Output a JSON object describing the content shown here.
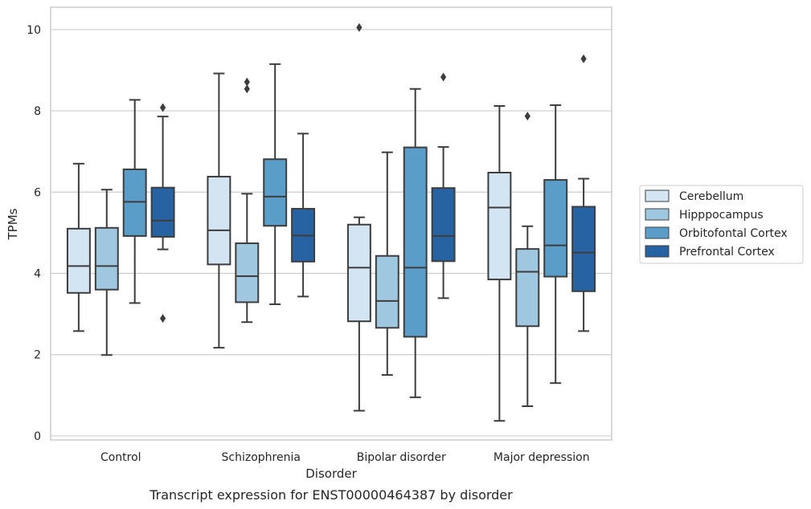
{
  "caption": "Transcript expression for ENST00000464387 by disorder",
  "chart_data": {
    "type": "boxplot",
    "title": "",
    "xlabel": "Disorder",
    "ylabel": "TPMs",
    "ylim": [
      -0.1,
      10.55
    ],
    "yticks": [
      0,
      2,
      4,
      6,
      8,
      10
    ],
    "grid": "horizontal",
    "legend_position": "right",
    "categories": [
      "Control",
      "Schizophrenia",
      "Bipolar disorder",
      "Major depression"
    ],
    "series": [
      {
        "name": "Cerebellum",
        "color": "#d3e4f3",
        "boxes": [
          {
            "whislo": 2.58,
            "q1": 3.52,
            "med": 4.18,
            "q3": 5.1,
            "whishi": 6.7,
            "fliers": []
          },
          {
            "whislo": 2.17,
            "q1": 4.22,
            "med": 5.06,
            "q3": 6.38,
            "whishi": 8.92,
            "fliers": []
          },
          {
            "whislo": 0.62,
            "q1": 2.82,
            "med": 4.14,
            "q3": 5.2,
            "whishi": 5.38,
            "fliers": [
              10.05
            ]
          },
          {
            "whislo": 0.37,
            "q1": 3.85,
            "med": 5.62,
            "q3": 6.48,
            "whishi": 8.12,
            "fliers": []
          }
        ]
      },
      {
        "name": "Hipppocampus",
        "color": "#9fc8e0",
        "boxes": [
          {
            "whislo": 1.99,
            "q1": 3.6,
            "med": 4.18,
            "q3": 5.12,
            "whishi": 6.06,
            "fliers": []
          },
          {
            "whislo": 2.8,
            "q1": 3.29,
            "med": 3.93,
            "q3": 4.74,
            "whishi": 5.96,
            "fliers": [
              8.71,
              8.54
            ]
          },
          {
            "whislo": 1.5,
            "q1": 2.66,
            "med": 3.32,
            "q3": 4.43,
            "whishi": 6.98,
            "fliers": []
          },
          {
            "whislo": 0.73,
            "q1": 2.7,
            "med": 4.04,
            "q3": 4.6,
            "whishi": 5.16,
            "fliers": [
              7.87
            ]
          }
        ]
      },
      {
        "name": "Orbitofontal Cortex",
        "color": "#5a9dc9",
        "boxes": [
          {
            "whislo": 3.27,
            "q1": 4.92,
            "med": 5.76,
            "q3": 6.56,
            "whishi": 8.27,
            "fliers": []
          },
          {
            "whislo": 3.24,
            "q1": 5.17,
            "med": 5.89,
            "q3": 6.81,
            "whishi": 9.15,
            "fliers": []
          },
          {
            "whislo": 0.95,
            "q1": 2.44,
            "med": 4.14,
            "q3": 7.1,
            "whishi": 8.54,
            "fliers": []
          },
          {
            "whislo": 1.3,
            "q1": 3.92,
            "med": 4.69,
            "q3": 6.3,
            "whishi": 8.14,
            "fliers": []
          }
        ]
      },
      {
        "name": "Prefrontal Cortex",
        "color": "#2763a2",
        "boxes": [
          {
            "whislo": 4.59,
            "q1": 4.9,
            "med": 5.3,
            "q3": 6.11,
            "whishi": 7.86,
            "fliers": [
              8.08,
              2.89
            ]
          },
          {
            "whislo": 3.43,
            "q1": 4.29,
            "med": 4.93,
            "q3": 5.59,
            "whishi": 7.44,
            "fliers": []
          },
          {
            "whislo": 3.39,
            "q1": 4.3,
            "med": 4.92,
            "q3": 6.1,
            "whishi": 7.11,
            "fliers": [
              8.83
            ]
          },
          {
            "whislo": 2.58,
            "q1": 3.56,
            "med": 4.51,
            "q3": 5.64,
            "whishi": 6.33,
            "fliers": [
              9.28
            ]
          }
        ]
      }
    ]
  }
}
